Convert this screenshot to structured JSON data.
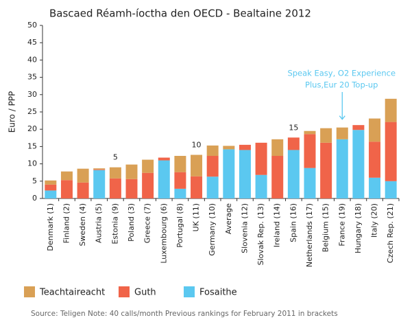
{
  "chart_data": {
    "type": "stacked_bar",
    "title": "Bascaed Réamh-íoctha den OECD - Bealtaine 2012",
    "y_label": "Euro / PPP",
    "categories": [
      "Denmark (1)",
      "Finland (2)",
      "Sweden (4)",
      "Austria (5)",
      "Estonia (9)",
      "Poland (3)",
      "Greece (7)",
      "Luxembourg (6)",
      "Portugal (8)",
      "UK (11)",
      "Germany (10)",
      "Average",
      "Slovenia (12)",
      "Slovak Rep. (13)",
      "Ireland (14)",
      "Spain (16)",
      "Netherlands (17)",
      "Belgium (15)",
      "France (19)",
      "Hungary (18)",
      "Italy (20)",
      "Czech Rep. (21)"
    ],
    "series": [
      {
        "name": "Fosaithe",
        "color": "#5bc8f0",
        "values": [
          2.3,
          0,
          0,
          8.2,
          0,
          0,
          0,
          11,
          2.8,
          0,
          6.3,
          14.2,
          14,
          6.8,
          0,
          14,
          8.8,
          0,
          17.1,
          19.8,
          6,
          5
        ]
      },
      {
        "name": "Guth",
        "color": "#f06449",
        "values": [
          1.7,
          5.3,
          4.6,
          0.2,
          5.8,
          5.6,
          7.4,
          0.8,
          4.8,
          6.4,
          6,
          0,
          1.5,
          9.3,
          12.3,
          3.6,
          9.8,
          16.1,
          0,
          1.4,
          10.4,
          17.1
        ]
      },
      {
        "name": "Teachtaireacht",
        "color": "#d9a055",
        "values": [
          1.2,
          2.5,
          4,
          0.3,
          3.2,
          4.2,
          3.8,
          0,
          4.7,
          6.2,
          3,
          1,
          0,
          0,
          4.8,
          0,
          0.9,
          4.2,
          3.4,
          0,
          6.7,
          6.7
        ]
      }
    ],
    "legend_order": [
      "Teachtaireacht",
      "Guth",
      "Fosaithe"
    ],
    "ylim": [
      0,
      50
    ],
    "yticks": [
      0,
      5,
      10,
      15,
      20,
      25,
      30,
      35,
      40,
      45,
      50
    ],
    "annotations": [
      {
        "text": "5",
        "category": "Estonia (9)"
      },
      {
        "text": "10",
        "category": "UK (11)"
      },
      {
        "text": "15",
        "category": "Spain (16)"
      }
    ],
    "callout": {
      "lines": [
        "Speak Easy, O2 Experience",
        "Plus,Eur 20 Top-up"
      ],
      "category": "France (19)",
      "color": "#5bc8f0"
    },
    "source": "Source: Teligen Note: 40 calls/month Previous rankings for February 2011 in brackets"
  }
}
